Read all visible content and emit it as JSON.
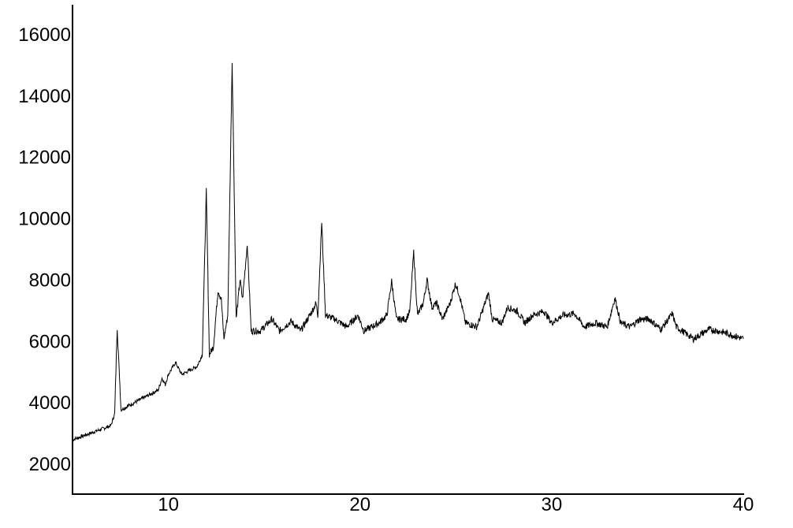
{
  "chart_data": {
    "type": "line",
    "title": "",
    "xlabel": "",
    "ylabel": "",
    "xlim": [
      5,
      40
    ],
    "ylim": [
      1000,
      16950
    ],
    "xticks": [
      10,
      20,
      30,
      40
    ],
    "yticks": [
      2000,
      4000,
      6000,
      8000,
      10000,
      12000,
      14000,
      16000
    ],
    "grid": false,
    "line_color": "#000000",
    "series": [
      {
        "points": [
          [
            5.0,
            2770
          ],
          [
            7.0,
            3230
          ],
          [
            7.2,
            3620
          ],
          [
            7.33,
            6450
          ],
          [
            7.53,
            3750
          ],
          [
            9.47,
            4390
          ],
          [
            9.67,
            4780
          ],
          [
            9.84,
            4570
          ],
          [
            10.0,
            4900
          ],
          [
            10.37,
            5290
          ],
          [
            10.7,
            4900
          ],
          [
            11.5,
            5160
          ],
          [
            11.77,
            5550
          ],
          [
            11.98,
            10870
          ],
          [
            12.14,
            5550
          ],
          [
            12.35,
            5800
          ],
          [
            12.59,
            7650
          ],
          [
            12.76,
            7350
          ],
          [
            12.9,
            6060
          ],
          [
            13.1,
            6830
          ],
          [
            13.33,
            15100
          ],
          [
            13.54,
            6700
          ],
          [
            13.74,
            7990
          ],
          [
            13.87,
            7350
          ],
          [
            14.12,
            9150
          ],
          [
            14.32,
            6320
          ],
          [
            14.8,
            6320
          ],
          [
            15.4,
            6700
          ],
          [
            15.8,
            6320
          ],
          [
            16.4,
            6630
          ],
          [
            16.9,
            6320
          ],
          [
            17.5,
            6960
          ],
          [
            17.7,
            7220
          ],
          [
            17.8,
            6830
          ],
          [
            18.0,
            9860
          ],
          [
            18.2,
            6830
          ],
          [
            18.7,
            6700
          ],
          [
            19.3,
            6450
          ],
          [
            19.9,
            6830
          ],
          [
            20.2,
            6320
          ],
          [
            21.0,
            6580
          ],
          [
            21.4,
            6830
          ],
          [
            21.65,
            7940
          ],
          [
            21.9,
            6700
          ],
          [
            22.4,
            6700
          ],
          [
            22.6,
            6960
          ],
          [
            22.8,
            8890
          ],
          [
            23.0,
            6830
          ],
          [
            23.3,
            7220
          ],
          [
            23.5,
            7990
          ],
          [
            23.75,
            7090
          ],
          [
            24.0,
            7220
          ],
          [
            24.3,
            6700
          ],
          [
            24.7,
            7220
          ],
          [
            24.98,
            7860
          ],
          [
            25.2,
            7470
          ],
          [
            25.5,
            6580
          ],
          [
            26.1,
            6450
          ],
          [
            26.7,
            7550
          ],
          [
            26.9,
            6700
          ],
          [
            27.4,
            6580
          ],
          [
            27.7,
            7090
          ],
          [
            28.2,
            6960
          ],
          [
            28.6,
            6580
          ],
          [
            29.0,
            6830
          ],
          [
            29.6,
            6960
          ],
          [
            30.0,
            6580
          ],
          [
            30.6,
            6830
          ],
          [
            31.2,
            6880
          ],
          [
            31.7,
            6450
          ],
          [
            32.3,
            6580
          ],
          [
            32.9,
            6450
          ],
          [
            33.3,
            7400
          ],
          [
            33.6,
            6580
          ],
          [
            34.1,
            6450
          ],
          [
            34.6,
            6700
          ],
          [
            35.1,
            6700
          ],
          [
            35.7,
            6370
          ],
          [
            36.3,
            6880
          ],
          [
            36.5,
            6450
          ],
          [
            37.4,
            6060
          ],
          [
            38.2,
            6370
          ],
          [
            39.0,
            6270
          ],
          [
            40.0,
            6060
          ]
        ]
      }
    ]
  }
}
